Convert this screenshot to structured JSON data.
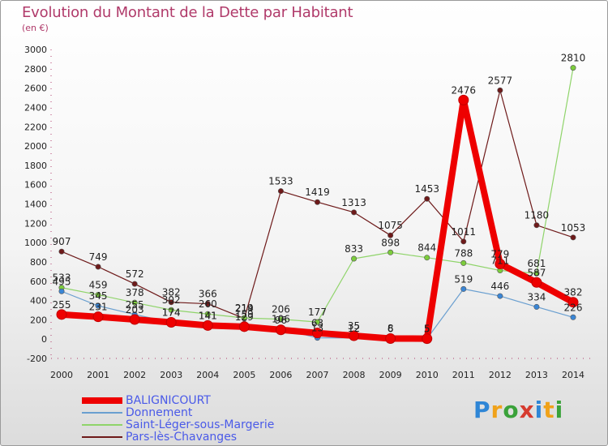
{
  "header": {
    "title": "Evolution du Montant de la Dette par Habitant",
    "unit": "(en €)"
  },
  "logo": {
    "text": "Proxiti",
    "letters": [
      {
        "ch": "P",
        "color": "#2f86d6"
      },
      {
        "ch": "r",
        "color": "#f0a21a"
      },
      {
        "ch": "o",
        "color": "#3aa23a"
      },
      {
        "ch": "x",
        "color": "#d63b2f"
      },
      {
        "ch": "i",
        "color": "#2f86d6"
      },
      {
        "ch": "t",
        "color": "#f0a21a"
      },
      {
        "ch": "i",
        "color": "#3aa23a"
      }
    ]
  },
  "chart_data": {
    "type": "line",
    "title": "Evolution du Montant de la Dette par Habitant",
    "ylabel": "(en €)",
    "xlabel": "",
    "x": [
      "2000",
      "2001",
      "2002",
      "2003",
      "2004",
      "2005",
      "2006",
      "2007",
      "2008",
      "2009",
      "2010",
      "2011",
      "2012",
      "2013",
      "2014"
    ],
    "ylim": [
      -200,
      3000
    ],
    "yticks": [
      -200,
      0,
      200,
      400,
      600,
      800,
      1000,
      1200,
      1400,
      1600,
      1800,
      2000,
      2200,
      2400,
      2600,
      2800,
      3000
    ],
    "grid": false,
    "legend_position": "bottom-left",
    "series": [
      {
        "name": "Pars-lès-Chavanges",
        "color": "#6e1a1a",
        "marker": "#6e1a1a",
        "width": 1.2,
        "values": [
          907,
          749,
          572,
          382,
          366,
          214,
          1533,
          1419,
          1313,
          1075,
          1453,
          1011,
          2577,
          1180,
          1053
        ],
        "labels": [
          "907",
          "749",
          "572",
          "382",
          "366",
          "214",
          "1533",
          "1419",
          "1313",
          "1075",
          "1453",
          "1011",
          "2577",
          "1180",
          "1053"
        ]
      },
      {
        "name": "Saint-Léger-sous-Margerie",
        "color": "#8fd46a",
        "marker": "#7ccc3c",
        "width": 1.2,
        "values": [
          533,
          459,
          378,
          302,
          260,
          219,
          206,
          177,
          833,
          898,
          844,
          788,
          711,
          681,
          2810
        ],
        "labels": [
          "533",
          "459",
          "378",
          "302",
          "260",
          "219",
          "206",
          "177",
          "833",
          "898",
          "844",
          "788",
          "711",
          "681",
          "2810"
        ]
      },
      {
        "name": "Donnement",
        "color": "#6a9fd0",
        "marker": "#3a86d6",
        "width": 1.2,
        "values": [
          495,
          345,
          255,
          174,
          141,
          159,
          106,
          13,
          12,
          8,
          5,
          519,
          446,
          334,
          226
        ],
        "labels": [
          "495",
          "345",
          "255",
          "174",
          "141",
          "159",
          "106",
          "13",
          "12",
          "8",
          "5",
          "519",
          "446",
          "334",
          "226"
        ]
      },
      {
        "name": "BALIGNICOURT",
        "color": "#ee0000",
        "marker": "#ee0000",
        "width": 8,
        "values": [
          255,
          231,
          203,
          174,
          141,
          129,
          96,
          63,
          35,
          6,
          5,
          2476,
          779,
          587,
          382
        ],
        "labels": [
          "255",
          "231",
          "203",
          "174",
          "141",
          "129",
          "96",
          "63",
          "35",
          "6",
          "5",
          "2476",
          "779",
          "587",
          "382"
        ]
      }
    ],
    "legend_order": [
      "BALIGNICOURT",
      "Donnement",
      "Saint-Léger-sous-Margerie",
      "Pars-lès-Chavanges"
    ]
  }
}
